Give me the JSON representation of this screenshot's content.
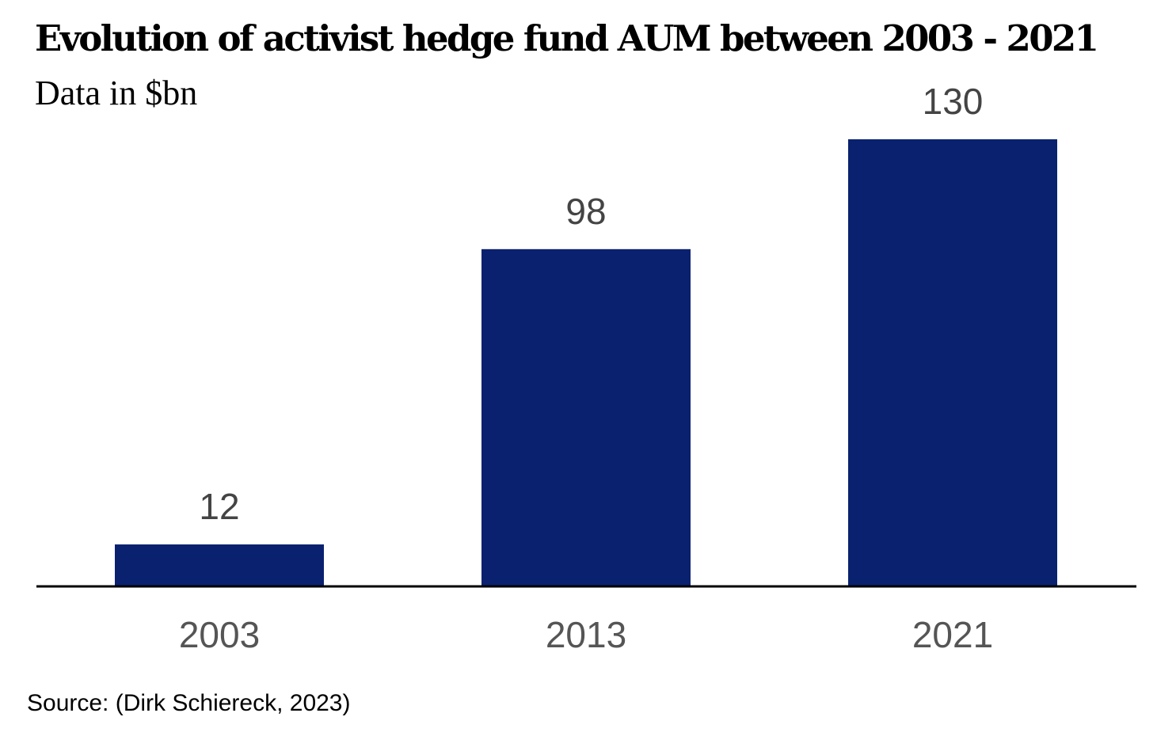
{
  "chart_data": {
    "type": "bar",
    "title": "Evolution of activist hedge fund AUM between 2003 - 2021",
    "subtitle": "Data in $bn",
    "categories": [
      "2003",
      "2013",
      "2021"
    ],
    "values": [
      12,
      98,
      130
    ],
    "data_labels": [
      "12",
      "98",
      "130"
    ],
    "ylim": [
      0,
      130
    ],
    "grid": false,
    "legend": "none",
    "colors": {
      "bar": "#0a2170",
      "axis": "#000000",
      "value_label": "#444444",
      "tick_label": "#555555"
    }
  },
  "source": "Source: (Dirk Schiereck, 2023)"
}
